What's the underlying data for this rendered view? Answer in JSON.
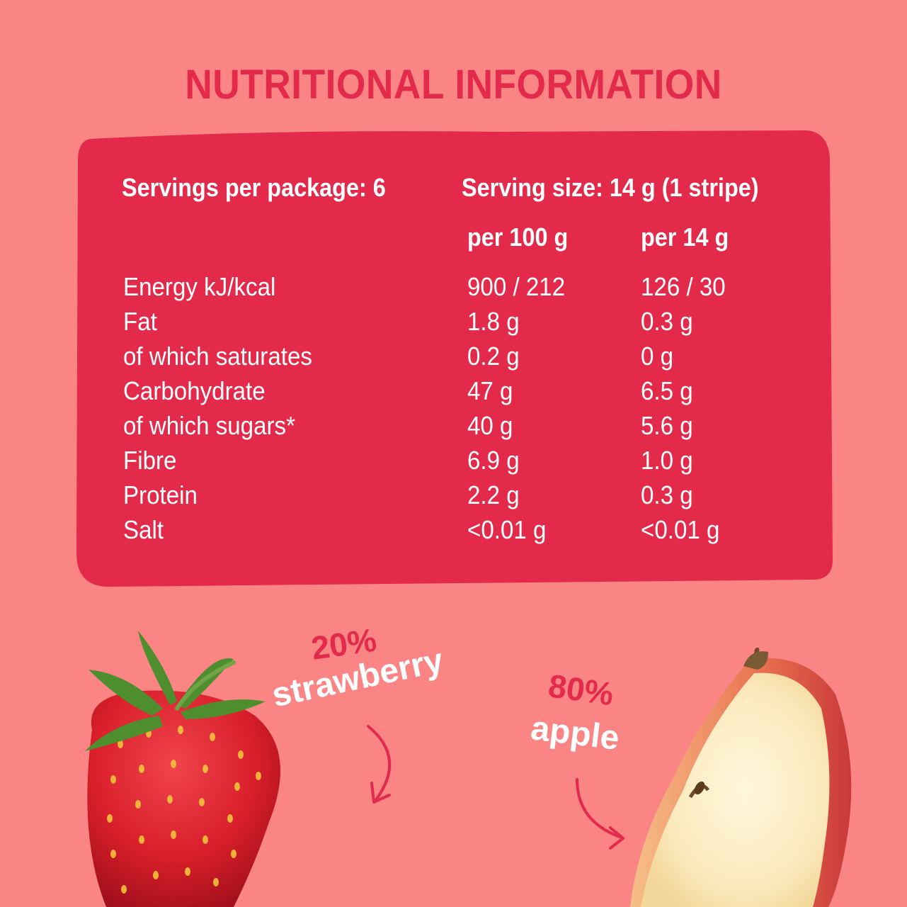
{
  "title": "NUTRITIONAL INFORMATION",
  "servings_per_package": "Servings per package: 6",
  "serving_size": "Serving size: 14 g (1 stripe)",
  "columns": {
    "per100": "per 100 g",
    "per14": "per 14 g"
  },
  "rows": [
    {
      "name": "Energy kJ/kcal",
      "per100": "900 / 212",
      "per14": "126 / 30"
    },
    {
      "name": "Fat",
      "per100": "1.8 g",
      "per14": "0.3 g"
    },
    {
      "name": "of which saturates",
      "per100": "0.2 g",
      "per14": "0 g"
    },
    {
      "name": "Carbohydrate",
      "per100": "47 g",
      "per14": "6.5 g"
    },
    {
      "name": "of which sugars*",
      "per100": "40 g",
      "per14": "5.6 g"
    },
    {
      "name": "Fibre",
      "per100": "6.9 g",
      "per14": "1.0 g"
    },
    {
      "name": "Protein",
      "per100": "2.2 g",
      "per14": "0.3 g"
    },
    {
      "name": "Salt",
      "per100": "<0.01 g",
      "per14": "<0.01 g"
    }
  ],
  "ingredients": [
    {
      "percent": "20%",
      "name": "strawberry"
    },
    {
      "percent": "80%",
      "name": "apple"
    }
  ],
  "colors": {
    "background": "#fb8585",
    "panel": "#e32a4a",
    "text_light": "#ffffff"
  }
}
